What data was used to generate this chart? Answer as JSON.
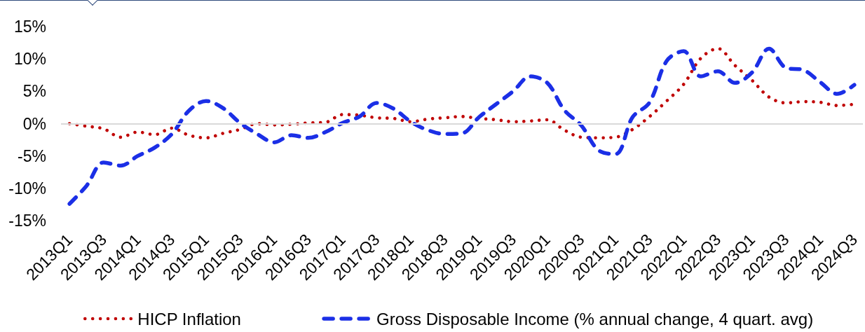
{
  "chart_data": {
    "type": "line",
    "categories": [
      "2013Q1",
      null,
      "2013Q3",
      null,
      "2014Q1",
      null,
      "2014Q3",
      null,
      "2015Q1",
      null,
      "2015Q3",
      null,
      "2016Q1",
      null,
      "2016Q3",
      null,
      "2017Q1",
      null,
      "2017Q3",
      null,
      "2018Q1",
      null,
      "2018Q3",
      null,
      "2019Q1",
      null,
      "2019Q3",
      null,
      "2020Q1",
      null,
      "2020Q3",
      null,
      "2021Q1",
      null,
      "2021Q3",
      null,
      "2022Q1",
      null,
      "2022Q3",
      null,
      "2023Q1",
      null,
      "2023Q3",
      null,
      "2024Q1",
      null,
      "2024Q3"
    ],
    "series": [
      {
        "name": "HICP Inflation",
        "color": "#c00000",
        "line_style": "dotted",
        "values": [
          0.0,
          -0.4,
          -0.8,
          -2.1,
          -1.3,
          -1.7,
          -0.7,
          -1.8,
          -2.2,
          -1.5,
          -0.9,
          0.0,
          -0.2,
          -0.1,
          0.1,
          0.2,
          1.4,
          1.3,
          0.9,
          0.8,
          0.3,
          0.7,
          0.9,
          1.1,
          0.8,
          0.6,
          0.3,
          0.4,
          0.6,
          -1.0,
          -2.1,
          -2.2,
          -2.1,
          -0.9,
          1.1,
          3.5,
          6.1,
          10.1,
          11.6,
          9.0,
          6.7,
          4.1,
          3.2,
          3.4,
          3.3,
          2.8,
          3.0
        ]
      },
      {
        "name": "Gross Disposable Income (% annual change, 4 quart. avg)",
        "color": "#1b2fe6",
        "line_style": "dashed",
        "values": [
          -12.4,
          -9.6,
          -6.0,
          -6.5,
          -5.0,
          -3.7,
          -1.6,
          2.0,
          3.5,
          2.4,
          0.1,
          -1.6,
          -2.9,
          -1.8,
          -2.2,
          -1.3,
          0.1,
          1.1,
          3.2,
          2.3,
          0.3,
          -1.0,
          -1.6,
          -1.5,
          1.0,
          3.0,
          5.0,
          7.3,
          6.3,
          2.1,
          -0.3,
          -4.1,
          -4.7,
          1.0,
          3.3,
          9.7,
          11.2,
          7.3,
          8.1,
          6.3,
          7.9,
          11.6,
          8.6,
          8.3,
          6.4,
          4.6,
          6.0
        ]
      }
    ],
    "ylim": [
      -15,
      15
    ],
    "yticks": [
      {
        "value": -15,
        "label": "-15%"
      },
      {
        "value": -10,
        "label": "-10%"
      },
      {
        "value": -5,
        "label": "-5%"
      },
      {
        "value": 0,
        "label": "0%"
      },
      {
        "value": 5,
        "label": "5%"
      },
      {
        "value": 10,
        "label": "10%"
      },
      {
        "value": 15,
        "label": "15%"
      }
    ],
    "ref_lines": [
      {
        "axis": "y",
        "value": 0,
        "color": "#d9d9d9"
      }
    ],
    "grid": false,
    "legend": "bottom",
    "marker": "none"
  }
}
